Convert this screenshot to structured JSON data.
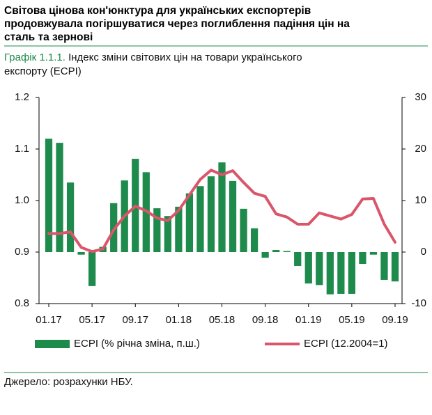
{
  "chart_data": {
    "type": "bar_line",
    "title": [
      "Світова цінова кон'юнктура для українських експортерів",
      "продовжувала погіршуватися через поглиблення падіння цін на",
      "сталь та зернові"
    ],
    "subtitle_label": "Графік 1.1.1.",
    "subtitle": [
      "Індекс  зміни світових цін на товари українського",
      "експорту (ECPI)"
    ],
    "source": "Джерело: розрахунки НБУ.",
    "categories": [
      "01.17",
      null,
      null,
      null,
      "05.17",
      null,
      null,
      null,
      "09.17",
      null,
      null,
      null,
      "01.18",
      null,
      null,
      null,
      "05.18",
      null,
      null,
      null,
      "09.18",
      null,
      null,
      null,
      "01.19",
      null,
      null,
      null,
      "05.19",
      null,
      null,
      null,
      "09.19"
    ],
    "series": [
      {
        "name": "ECPI (% річна зміна, п.ш.)",
        "type": "bar",
        "axis": "y2",
        "color": "#1e8a4c",
        "values": [
          22.0,
          21.2,
          13.5,
          -0.5,
          -6.6,
          1.0,
          9.5,
          13.9,
          18.1,
          15.5,
          8.5,
          7.0,
          8.8,
          11.4,
          12.8,
          14.7,
          17.4,
          13.8,
          8.4,
          4.6,
          -1.1,
          0.4,
          0.2,
          -2.7,
          -6.1,
          -6.4,
          -8.2,
          -8.1,
          -8.1,
          -2.3,
          -0.5,
          -5.4,
          -5.7
        ]
      },
      {
        "name": "ECPI (12.2004=1)",
        "type": "line",
        "axis": "y",
        "color": "#d9566b",
        "values": [
          0.936,
          0.936,
          0.939,
          0.909,
          0.901,
          0.906,
          0.943,
          0.97,
          0.989,
          0.98,
          0.966,
          0.961,
          0.981,
          1.011,
          1.041,
          1.059,
          1.05,
          1.058,
          1.035,
          1.014,
          1.008,
          0.974,
          0.968,
          0.954,
          0.954,
          0.976,
          0.97,
          0.964,
          0.973,
          1.003,
          1.004,
          0.954,
          0.919
        ]
      }
    ],
    "ylim": [
      0.8,
      1.2
    ],
    "yticks": [
      {
        "value": 0.8,
        "label": "0.8"
      },
      {
        "value": 0.9,
        "label": "0.9"
      },
      {
        "value": 1.0,
        "label": "1.0"
      },
      {
        "value": 1.1,
        "label": "1.1"
      },
      {
        "value": 1.2,
        "label": "1.2"
      }
    ],
    "y2lim": [
      -10,
      30
    ],
    "y2ticks": [
      -10,
      0,
      10,
      20,
      30
    ],
    "legend": "bottom"
  }
}
